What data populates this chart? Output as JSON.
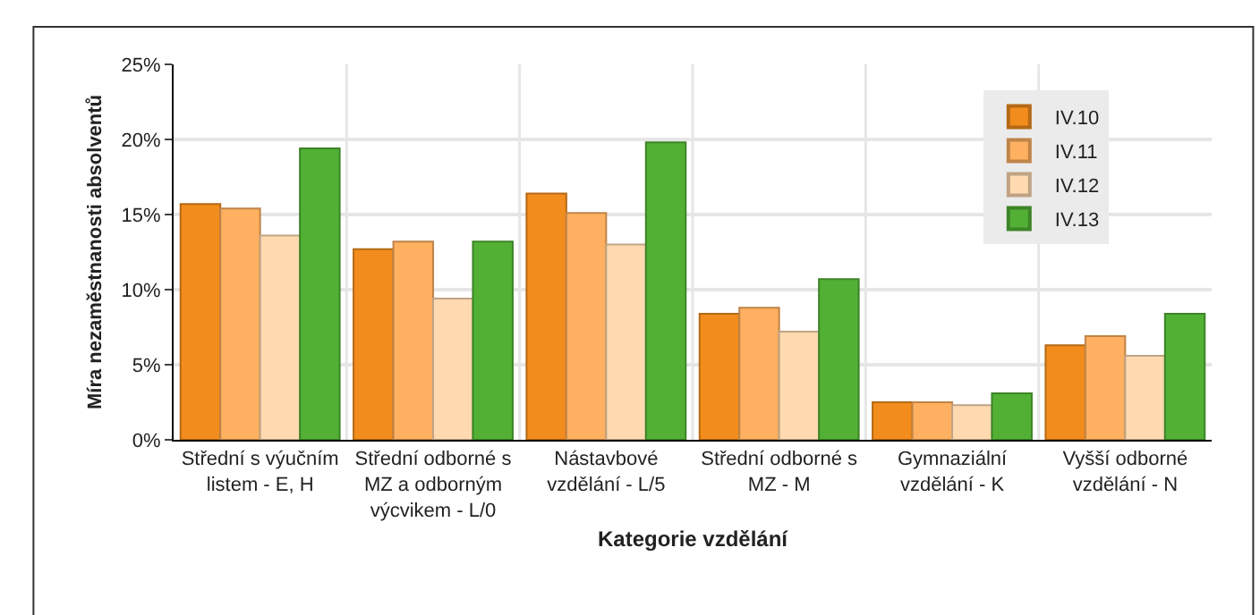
{
  "chart_data": {
    "type": "bar",
    "xlabel": "Kategorie vzdělání",
    "ylabel": "Míra nezaměstnanosti absolventů",
    "categories": [
      "Střední s výučním listem - E, H",
      "Střední odborné s MZ a odborným výcvikem - L/0",
      "Nástavbové vzdělání - L/5",
      "Střední odborné s MZ - M",
      "Gymnaziální vzdělání - K",
      "Vyšší odborné vzdělání - N"
    ],
    "series": [
      {
        "name": "IV.10",
        "color": "#f28c1c",
        "values": [
          15.7,
          12.7,
          16.4,
          8.4,
          2.5,
          6.3
        ]
      },
      {
        "name": "IV.11",
        "color": "#ffb060",
        "values": [
          15.4,
          13.2,
          15.1,
          8.8,
          2.5,
          6.9
        ]
      },
      {
        "name": "IV.12",
        "color": "#ffdab0",
        "values": [
          13.6,
          9.4,
          13.0,
          7.2,
          2.3,
          5.6
        ]
      },
      {
        "name": "IV.13",
        "color": "#52b135",
        "values": [
          19.4,
          13.2,
          19.8,
          10.7,
          3.1,
          8.4
        ]
      }
    ],
    "ylim": [
      0,
      25
    ],
    "yticks": [
      {
        "value": 0,
        "label": "0%"
      },
      {
        "value": 5,
        "label": "5%"
      },
      {
        "value": 10,
        "label": "10%"
      },
      {
        "value": 15,
        "label": "15%"
      },
      {
        "value": 20,
        "label": "20%"
      },
      {
        "value": 25,
        "label": "25%"
      }
    ],
    "grid": true,
    "legend": "top right"
  }
}
